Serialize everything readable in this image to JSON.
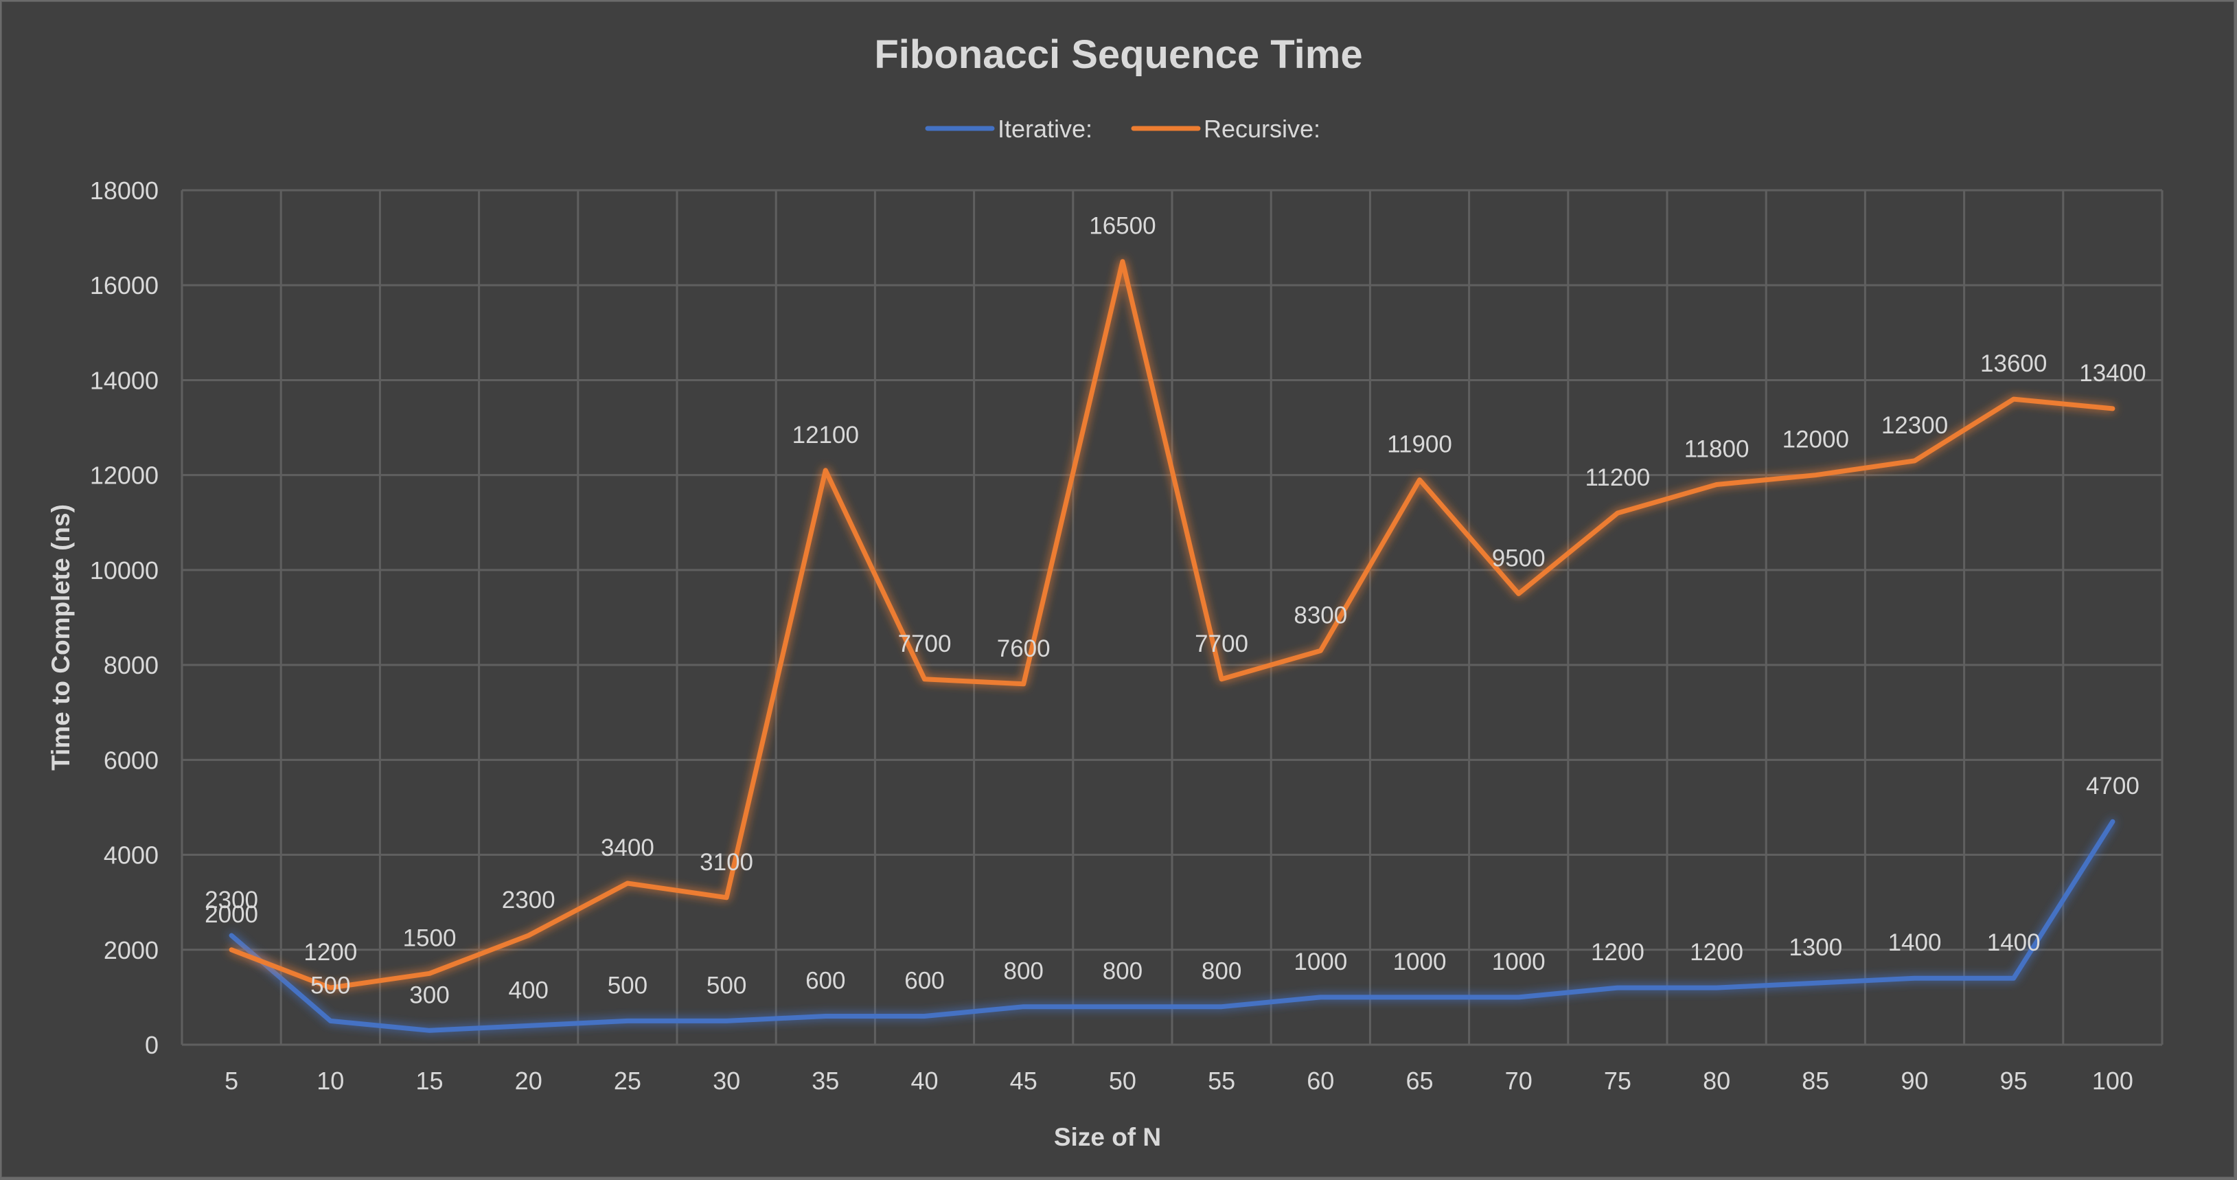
{
  "chart_data": {
    "type": "line",
    "title": "Fibonacci Sequence Time",
    "xlabel": "Size of N",
    "ylabel": "Time to Complete (ns)",
    "categories": [
      "5",
      "10",
      "15",
      "20",
      "25",
      "30",
      "35",
      "40",
      "45",
      "50",
      "55",
      "60",
      "65",
      "70",
      "75",
      "80",
      "85",
      "90",
      "95",
      "100"
    ],
    "ylim": [
      0,
      18000
    ],
    "y_ticks": [
      "0",
      "2000",
      "4000",
      "6000",
      "8000",
      "10000",
      "12000",
      "14000",
      "16000",
      "18000"
    ],
    "grid": true,
    "legend_position": "top-center",
    "series": [
      {
        "name": "Iterative:",
        "color": "#4472c4",
        "values": [
          2300,
          500,
          300,
          400,
          500,
          500,
          600,
          600,
          800,
          800,
          800,
          1000,
          1000,
          1000,
          1200,
          1200,
          1300,
          1400,
          1400,
          4700
        ],
        "labels": [
          "2300",
          "500",
          "300",
          "400",
          "500",
          "500",
          "600",
          "600",
          "800",
          "800",
          "800",
          "1000",
          "1000",
          "1000",
          "1200",
          "1200",
          "1300",
          "1400",
          "1400",
          "4700"
        ]
      },
      {
        "name": "Recursive:",
        "color": "#ed7d31",
        "values": [
          2000,
          1200,
          1500,
          2300,
          3400,
          3100,
          12100,
          7700,
          7600,
          16500,
          7700,
          8300,
          11900,
          9500,
          11200,
          11800,
          12000,
          12300,
          13600,
          13400
        ],
        "labels": [
          "2000",
          "1200",
          "1500",
          "2300",
          "3400",
          "3100",
          "12100",
          "7700",
          "7600",
          "16500",
          "7700",
          "8300",
          "11900",
          "9500",
          "11200",
          "11800",
          "12000",
          "12300",
          "13600",
          "13400"
        ]
      }
    ]
  }
}
